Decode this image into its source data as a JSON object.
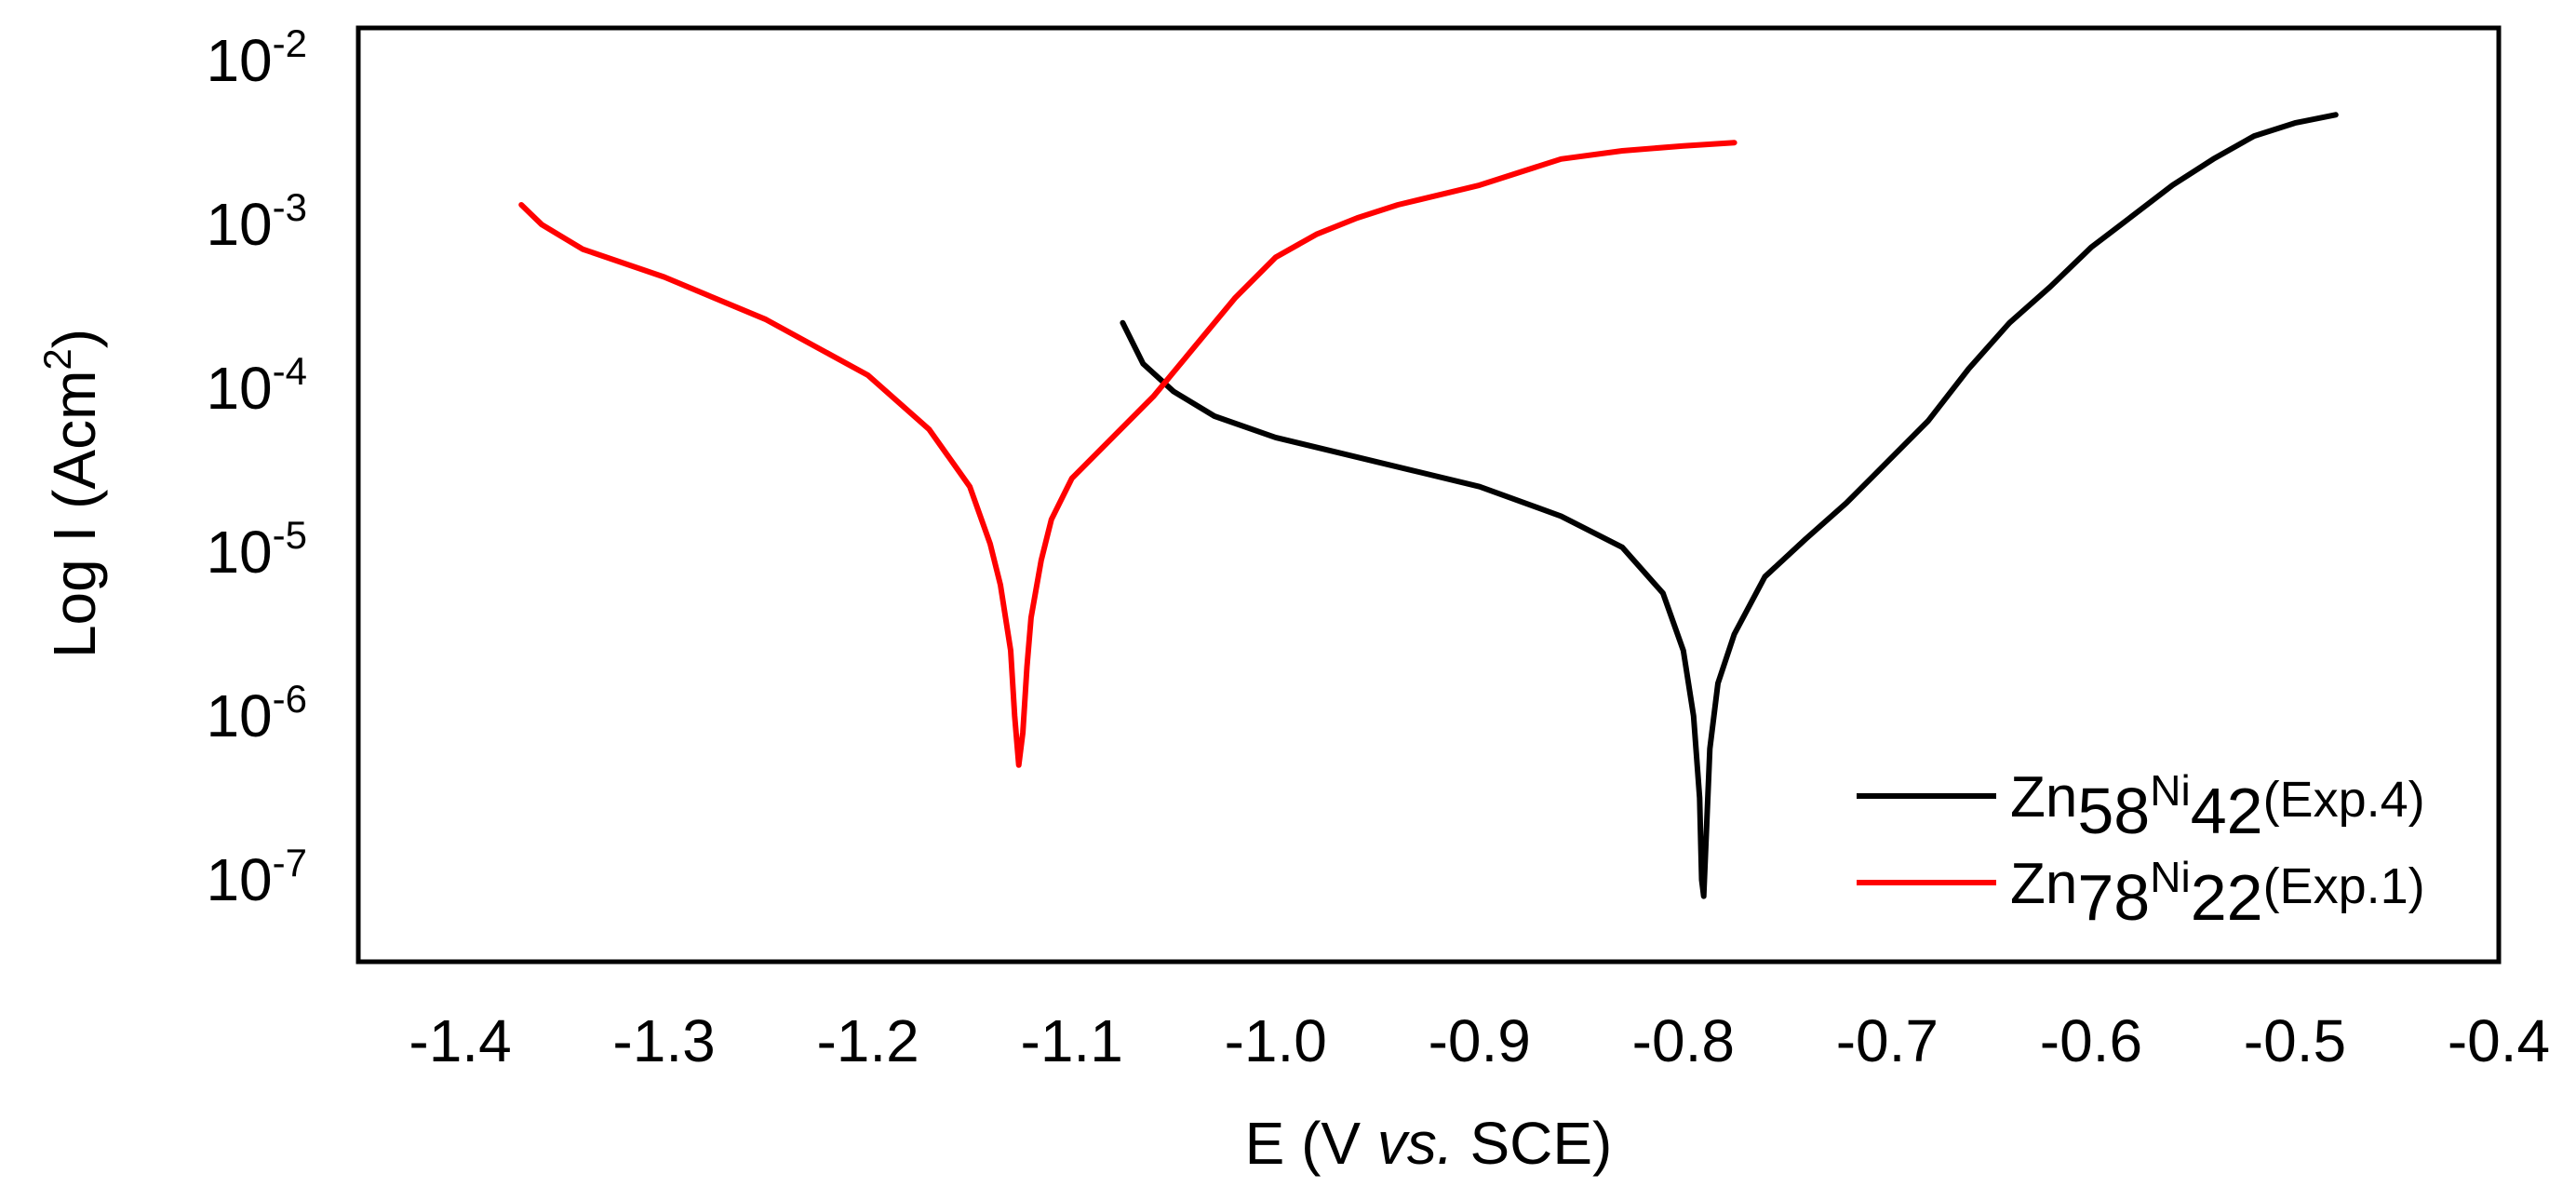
{
  "chart_data": {
    "type": "line",
    "title": "",
    "xlabel": {
      "before": "E (V ",
      "italic": "vs.",
      "after": " SCE)"
    },
    "ylabel": {
      "base": "Log I (Acm",
      "sup": "2",
      "close": ")"
    },
    "xlim": [
      -1.45,
      -0.4
    ],
    "ylim_exp": [
      -7.5,
      -1.8
    ],
    "x_ticks": [
      {
        "value": -1.4,
        "label": "-1.4"
      },
      {
        "value": -1.3,
        "label": "-1.3"
      },
      {
        "value": -1.2,
        "label": "-1.2"
      },
      {
        "value": -1.1,
        "label": "-1.1"
      },
      {
        "value": -1.0,
        "label": "-1.0"
      },
      {
        "value": -0.9,
        "label": "-0.9"
      },
      {
        "value": -0.8,
        "label": "-0.8"
      },
      {
        "value": -0.7,
        "label": "-0.7"
      },
      {
        "value": -0.6,
        "label": "-0.6"
      },
      {
        "value": -0.5,
        "label": "-0.5"
      },
      {
        "value": -0.4,
        "label": "-0.4"
      }
    ],
    "y_ticks": [
      {
        "exp": -2,
        "base": "10",
        "sup": "-2"
      },
      {
        "exp": -3,
        "base": "10",
        "sup": "-3"
      },
      {
        "exp": -4,
        "base": "10",
        "sup": "-4"
      },
      {
        "exp": -5,
        "base": "10",
        "sup": "-5"
      },
      {
        "exp": -6,
        "base": "10",
        "sup": "-6"
      },
      {
        "exp": -7,
        "base": "10",
        "sup": "-7"
      }
    ],
    "legend_position": "bottom-right",
    "series": [
      {
        "name": "Zn58Ni42(Exp.4)",
        "legend": {
          "a": "Zn",
          "b": "58",
          "c": "Ni",
          "d": "42",
          "e": "(Exp.4)"
        },
        "color": "#000000",
        "x": [
          -1.075,
          -1.065,
          -1.05,
          -1.03,
          -1.0,
          -0.95,
          -0.9,
          -0.86,
          -0.83,
          -0.81,
          -0.8,
          -0.795,
          -0.792,
          -0.791,
          -0.79,
          -0.789,
          -0.787,
          -0.783,
          -0.775,
          -0.76,
          -0.74,
          -0.72,
          -0.7,
          -0.68,
          -0.66,
          -0.64,
          -0.62,
          -0.6,
          -0.58,
          -0.56,
          -0.54,
          -0.52,
          -0.5,
          -0.48
        ],
        "log_i": [
          -3.6,
          -3.85,
          -4.02,
          -4.17,
          -4.3,
          -4.45,
          -4.6,
          -4.78,
          -4.97,
          -5.25,
          -5.6,
          -6.0,
          -6.5,
          -7.0,
          -7.1,
          -6.8,
          -6.2,
          -5.8,
          -5.5,
          -5.15,
          -4.92,
          -4.7,
          -4.45,
          -4.2,
          -3.88,
          -3.6,
          -3.38,
          -3.14,
          -2.95,
          -2.76,
          -2.6,
          -2.46,
          -2.38,
          -2.33
        ]
      },
      {
        "name": "Zn78Ni22(Exp.1)",
        "legend": {
          "a": "Zn",
          "b": "78",
          "c": "Ni",
          "d": "22",
          "e": "(Exp.1)"
        },
        "color": "#ff0000",
        "x": [
          -1.37,
          -1.36,
          -1.34,
          -1.3,
          -1.25,
          -1.2,
          -1.17,
          -1.15,
          -1.14,
          -1.135,
          -1.13,
          -1.128,
          -1.126,
          -1.124,
          -1.122,
          -1.12,
          -1.115,
          -1.11,
          -1.1,
          -1.08,
          -1.06,
          -1.04,
          -1.02,
          -1.0,
          -0.98,
          -0.96,
          -0.94,
          -0.9,
          -0.86,
          -0.83,
          -0.8,
          -0.775
        ],
        "log_i": [
          -2.88,
          -3.0,
          -3.15,
          -3.32,
          -3.58,
          -3.92,
          -4.25,
          -4.6,
          -4.95,
          -5.2,
          -5.6,
          -6.0,
          -6.3,
          -6.1,
          -5.7,
          -5.4,
          -5.05,
          -4.8,
          -4.55,
          -4.3,
          -4.05,
          -3.75,
          -3.45,
          -3.2,
          -3.06,
          -2.96,
          -2.88,
          -2.76,
          -2.6,
          -2.55,
          -2.52,
          -2.5
        ]
      }
    ]
  }
}
